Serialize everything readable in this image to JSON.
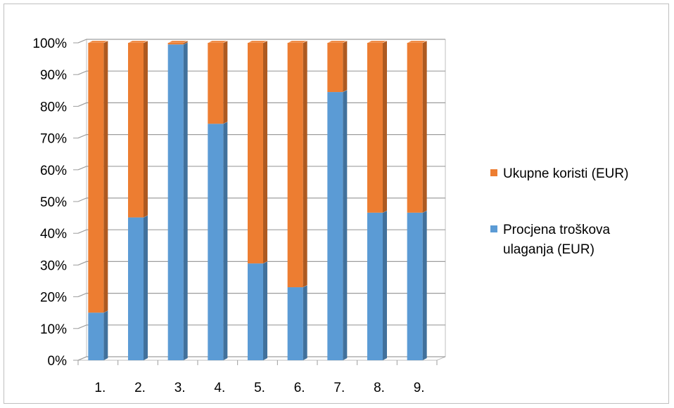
{
  "chart_data": {
    "type": "bar",
    "stacked": true,
    "percent_stacked": true,
    "three_d": true,
    "categories": [
      "1.",
      "2.",
      "3.",
      "4.",
      "5.",
      "6.",
      "7.",
      "8.",
      "9."
    ],
    "series": [
      {
        "name": "Procjena troškova ulaganja (EUR)",
        "values": [
          15,
          45,
          99.5,
          74.5,
          30.5,
          23,
          84.5,
          46.5,
          46.5
        ],
        "color": "#5b9bd5",
        "side_color": "#41719c"
      },
      {
        "name": "Ukupne koristi (EUR)",
        "values": [
          85,
          55,
          0.5,
          25.5,
          69.5,
          77,
          15.5,
          53.5,
          53.5
        ],
        "color": "#ed7d31",
        "side_color": "#ae5a21"
      }
    ],
    "y_ticks": [
      "0%",
      "10%",
      "20%",
      "30%",
      "40%",
      "50%",
      "60%",
      "70%",
      "80%",
      "90%",
      "100%"
    ],
    "ylim": [
      0,
      100
    ],
    "grid": true,
    "legend_position": "right",
    "legend_order": [
      "Ukupne koristi (EUR)",
      "Procjena troškova ulaganja (EUR)"
    ],
    "legend_lines": [
      [
        "Ukupne koristi (EUR)"
      ],
      [
        "Procjena troškova",
        "ulaganja (EUR)"
      ]
    ]
  }
}
